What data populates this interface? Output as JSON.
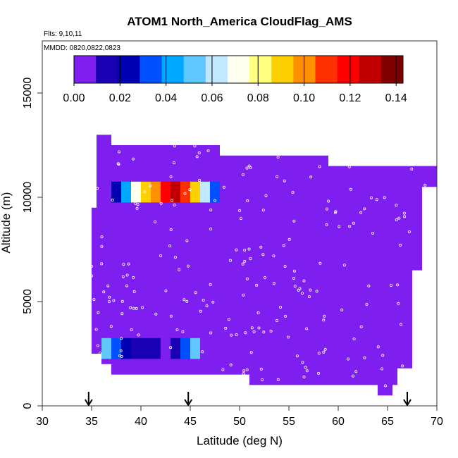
{
  "chart_data": {
    "type": "heatmap",
    "title": "ATOM1 North_America CloudFlag_AMS",
    "flights_note": "Flts: 9,10,11",
    "dates_note": "MMDD: 0820,0822,0823",
    "xlabel": "Latitude (deg N)",
    "ylabel": "Altitude (m)",
    "xlim": [
      30,
      70
    ],
    "ylim": [
      0,
      17500
    ],
    "x_ticks": [
      30,
      35,
      40,
      45,
      50,
      55,
      60,
      65,
      70
    ],
    "y_ticks": [
      0,
      5000,
      10000,
      15000
    ],
    "x_tick_labels": [
      "30",
      "35",
      "40",
      "45",
      "50",
      "55",
      "60",
      "65",
      "70"
    ],
    "y_tick_labels": [
      "0",
      "5000",
      "10000",
      "15000"
    ],
    "colorbar": {
      "range": [
        0,
        0.143
      ],
      "ticks": [
        0,
        0.02,
        0.04,
        0.06,
        0.08,
        0.1,
        0.12,
        0.14
      ],
      "tick_labels": [
        "0.00",
        "0.02",
        "0.04",
        "0.06",
        "0.08",
        "0.10",
        "0.12",
        "0.14"
      ],
      "colors": [
        "#7f1fef",
        "#1a00b3",
        "#0000b3",
        "#0050ff",
        "#00a8ff",
        "#60c8ff",
        "#c0e8ff",
        "#fffff0",
        "#ffff80",
        "#ffd000",
        "#ff9000",
        "#ff3000",
        "#ff0000",
        "#c00000",
        "#800000"
      ]
    },
    "background_value": 0.0,
    "background_color": "#7f1fef",
    "region_polygon": [
      [
        35,
        3000
      ],
      [
        35,
        9500
      ],
      [
        35.5,
        9500
      ],
      [
        35.5,
        13000
      ],
      [
        37,
        13000
      ],
      [
        37,
        12500
      ],
      [
        48,
        12500
      ],
      [
        48,
        12000
      ],
      [
        59,
        12000
      ],
      [
        59,
        11500
      ],
      [
        70,
        11500
      ],
      [
        70,
        10500
      ],
      [
        68.5,
        10500
      ],
      [
        68.5,
        6500
      ],
      [
        67.5,
        6500
      ],
      [
        67.5,
        1800
      ],
      [
        66,
        1800
      ],
      [
        66,
        1000
      ],
      [
        65.5,
        1000
      ],
      [
        65.5,
        500
      ],
      [
        64,
        500
      ],
      [
        64,
        1000
      ],
      [
        51,
        1000
      ],
      [
        51,
        1500
      ],
      [
        37,
        1500
      ],
      [
        37,
        2000
      ],
      [
        36,
        2000
      ],
      [
        36,
        2500
      ],
      [
        35,
        2500
      ],
      [
        35,
        3000
      ]
    ],
    "highlight_bins": [
      {
        "altitude": 10250,
        "lat_start": 37,
        "lat_step": 1,
        "values": [
          0.02,
          0.04,
          0.07,
          0.09,
          0.1,
          0.12,
          0.13,
          0.11,
          0.09,
          0.06,
          0.03
        ]
      },
      {
        "altitude": 2750,
        "lat_start": 36,
        "lat_step": 1,
        "values": [
          0.05,
          0.035,
          0.02,
          0.01,
          0.01,
          0.01,
          0.005,
          0.01,
          0.03,
          0.05
        ]
      }
    ],
    "arrow_latitudes": [
      34.7,
      44.8,
      67.0
    ]
  }
}
